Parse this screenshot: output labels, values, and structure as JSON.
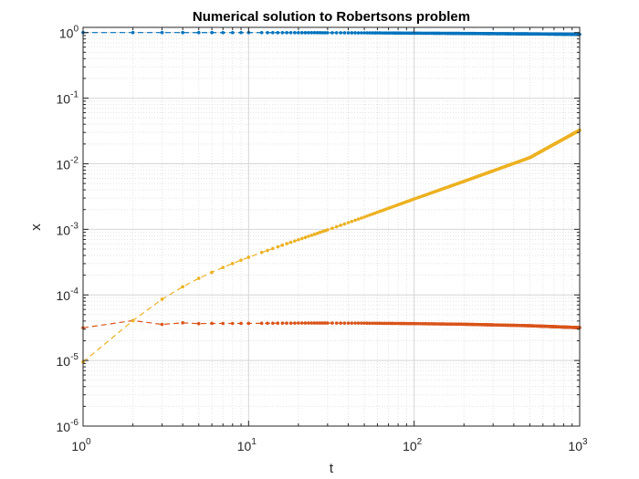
{
  "chart_data": {
    "type": "line",
    "title": "Numerical solution to Robertsons problem",
    "xlabel": "t",
    "ylabel": "x",
    "xscale": "log",
    "yscale": "log",
    "xlim": [
      1,
      1000
    ],
    "ylim": [
      1e-06,
      1.2
    ],
    "grid": true,
    "minor_grid": true,
    "x_ticks": [
      {
        "base": "10",
        "exp": "0",
        "value": 1
      },
      {
        "base": "10",
        "exp": "1",
        "value": 10
      },
      {
        "base": "10",
        "exp": "2",
        "value": 100
      },
      {
        "base": "10",
        "exp": "3",
        "value": 1000
      }
    ],
    "y_ticks": [
      {
        "base": "10",
        "exp": "0",
        "value": 1
      },
      {
        "base": "10",
        "exp": "-1",
        "value": 0.1
      },
      {
        "base": "10",
        "exp": "-2",
        "value": 0.01
      },
      {
        "base": "10",
        "exp": "-3",
        "value": 0.001
      },
      {
        "base": "10",
        "exp": "-4",
        "value": 0.0001
      },
      {
        "base": "10",
        "exp": "-5",
        "value": 1e-05
      },
      {
        "base": "10",
        "exp": "-6",
        "value": 1e-06
      }
    ],
    "series": [
      {
        "color": "#0072BD",
        "line_style": "dashed",
        "marker": "dot",
        "x": [
          1,
          2,
          3,
          4,
          5,
          6,
          7,
          8,
          9,
          10,
          12,
          14,
          16,
          18,
          20,
          30,
          50,
          100,
          200,
          500,
          1000
        ],
        "y": [
          1.0,
          0.9997,
          0.9995,
          0.9993,
          0.999,
          0.9988,
          0.9986,
          0.9984,
          0.9982,
          0.998,
          0.9976,
          0.9972,
          0.9968,
          0.9964,
          0.996,
          0.994,
          0.99,
          0.98,
          0.97,
          0.955,
          0.94
        ]
      },
      {
        "color": "#D95319",
        "line_style": "dashed",
        "marker": "dot",
        "x": [
          1,
          2,
          3,
          4,
          5,
          6,
          7,
          8,
          9,
          10,
          12,
          14,
          16,
          18,
          20,
          30,
          50,
          100,
          200,
          500,
          1000
        ],
        "y": [
          3.15e-05,
          4.06e-05,
          3.55e-05,
          3.75e-05,
          3.65e-05,
          3.68e-05,
          3.67e-05,
          3.67e-05,
          3.68e-05,
          3.68e-05,
          3.69e-05,
          3.7e-05,
          3.71e-05,
          3.71e-05,
          3.72e-05,
          3.72e-05,
          3.71e-05,
          3.65e-05,
          3.57e-05,
          3.39e-05,
          3.17e-05
        ]
      },
      {
        "color": "#EDB120",
        "line_style": "dashed",
        "marker": "dot",
        "x": [
          1,
          2,
          3,
          4,
          5,
          6,
          7,
          8,
          9,
          10,
          12,
          14,
          16,
          18,
          20,
          30,
          50,
          100,
          200,
          500,
          1000
        ],
        "y": [
          9.5e-06,
          4.05e-05,
          8.59e-05,
          0.000133,
          0.000179,
          0.000221,
          0.000262,
          0.000301,
          0.000339,
          0.000375,
          0.000444,
          0.000509,
          0.000573,
          0.000634,
          0.000694,
          0.000982,
          0.00154,
          0.0029,
          0.00539,
          0.0124,
          0.0325
        ]
      }
    ]
  }
}
